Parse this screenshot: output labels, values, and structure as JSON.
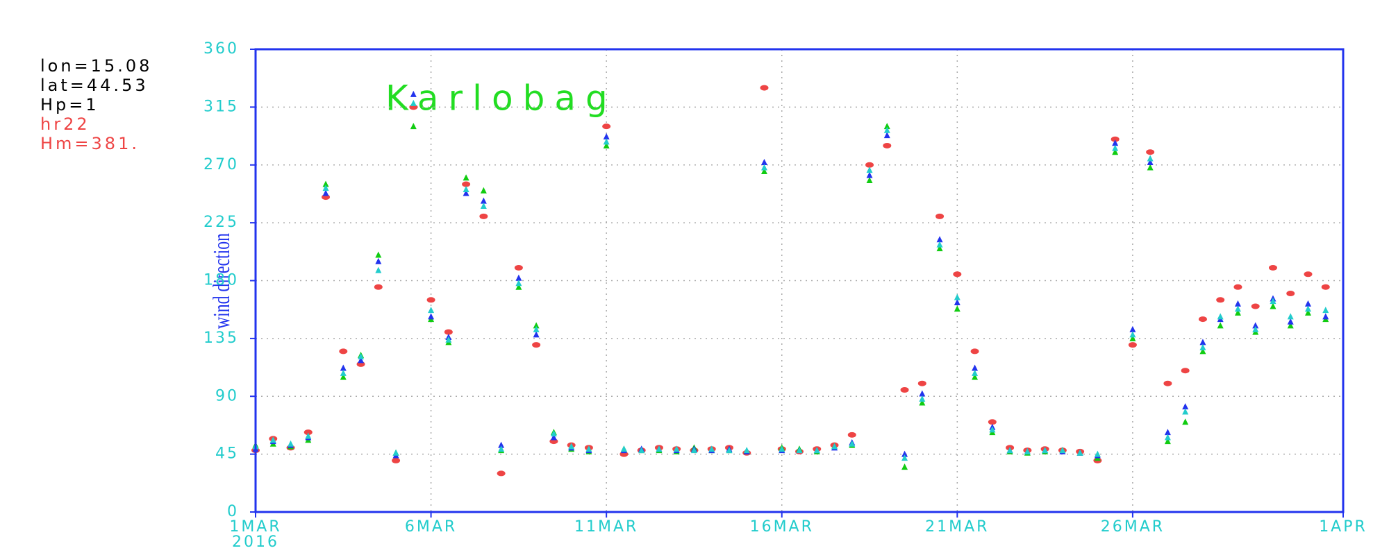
{
  "chart_data": {
    "type": "scatter",
    "title": "Karlobag",
    "title_color": "#22dd22",
    "annotations": [
      {
        "text": "lon=15.08",
        "color": "#000000"
      },
      {
        "text": "lat=44.53",
        "color": "#000000"
      },
      {
        "text": "Hp=1",
        "color": "#000000"
      },
      {
        "text": "hr22",
        "color": "#ee4444"
      },
      {
        "text": "Hm=381.",
        "color": "#ee4444"
      }
    ],
    "ylabel": "wind direction",
    "x_sublabel": "2016",
    "xlim": [
      0,
      31
    ],
    "xticks": [
      {
        "value": 0,
        "label": "1MAR"
      },
      {
        "value": 5,
        "label": "6MAR"
      },
      {
        "value": 10,
        "label": "11MAR"
      },
      {
        "value": 15,
        "label": "16MAR"
      },
      {
        "value": 20,
        "label": "21MAR"
      },
      {
        "value": 25,
        "label": "26MAR"
      },
      {
        "value": 31,
        "label": "1APR"
      }
    ],
    "ylim": [
      0,
      360
    ],
    "yticks": [
      0,
      45,
      90,
      135,
      180,
      225,
      270,
      315,
      360
    ],
    "grid": true,
    "x": [
      0,
      0.5,
      1,
      1.5,
      2,
      2.5,
      3,
      3.5,
      4,
      4.5,
      5,
      5.5,
      6,
      6.5,
      7,
      7.5,
      8,
      8.5,
      9,
      9.5,
      10,
      10.5,
      11,
      11.5,
      12,
      12.5,
      13,
      13.5,
      14,
      14.5,
      15,
      15.5,
      16,
      16.5,
      17,
      17.5,
      18,
      18.5,
      19,
      19.5,
      20,
      20.5,
      21,
      21.5,
      22,
      22.5,
      23,
      23.5,
      24,
      24.5,
      25,
      25.5,
      26,
      26.5,
      27,
      27.5,
      28,
      28.5,
      29,
      29.5,
      30,
      30.5
    ],
    "series": [
      {
        "color": "#ee4444",
        "marker": "ellipse",
        "values": [
          48,
          57,
          50,
          62,
          245,
          125,
          115,
          175,
          40,
          315,
          165,
          140,
          255,
          230,
          30,
          190,
          130,
          55,
          52,
          50,
          300,
          45,
          48,
          50,
          49,
          48,
          49,
          50,
          46,
          330,
          49,
          47,
          49,
          52,
          60,
          270,
          285,
          95,
          100,
          230,
          185,
          125,
          70,
          50,
          48,
          49,
          48,
          47,
          40,
          290,
          130,
          280,
          100,
          110,
          150,
          165,
          175,
          160,
          190,
          170,
          185,
          175
        ]
      },
      {
        "color": "#11cc11",
        "marker": "triangle",
        "values": [
          52,
          53,
          51,
          56,
          255,
          105,
          122,
          200,
          46,
          300,
          150,
          132,
          260,
          250,
          48,
          175,
          145,
          62,
          49,
          47,
          285,
          49,
          48,
          48,
          47,
          50,
          48,
          48,
          47,
          265,
          50,
          49,
          47,
          51,
          52,
          258,
          300,
          35,
          85,
          205,
          158,
          105,
          62,
          47,
          46,
          47,
          48,
          46,
          42,
          280,
          135,
          268,
          55,
          70,
          125,
          145,
          155,
          140,
          160,
          145,
          155,
          150
        ]
      },
      {
        "color": "#2233ee",
        "marker": "triangle",
        "values": [
          49,
          55,
          52,
          58,
          248,
          112,
          118,
          195,
          44,
          325,
          152,
          136,
          248,
          242,
          52,
          182,
          138,
          58,
          50,
          48,
          292,
          48,
          49,
          49,
          48,
          49,
          48,
          49,
          47,
          272,
          48,
          48,
          48,
          50,
          54,
          262,
          293,
          45,
          92,
          212,
          163,
          112,
          66,
          48,
          47,
          48,
          47,
          46,
          44,
          287,
          142,
          272,
          62,
          82,
          132,
          150,
          162,
          145,
          166,
          148,
          162,
          152
        ]
      },
      {
        "color": "#22cccc",
        "marker": "triangle",
        "values": [
          51,
          56,
          53,
          59,
          252,
          108,
          121,
          188,
          46,
          318,
          157,
          134,
          251,
          238,
          49,
          178,
          142,
          61,
          51,
          49,
          288,
          49,
          48,
          49,
          49,
          48,
          49,
          48,
          48,
          268,
          49,
          48,
          48,
          51,
          53,
          266,
          297,
          42,
          88,
          208,
          167,
          108,
          64,
          48,
          47,
          48,
          48,
          46,
          45,
          283,
          138,
          275,
          58,
          78,
          128,
          152,
          158,
          142,
          164,
          152,
          158,
          157
        ]
      }
    ]
  }
}
